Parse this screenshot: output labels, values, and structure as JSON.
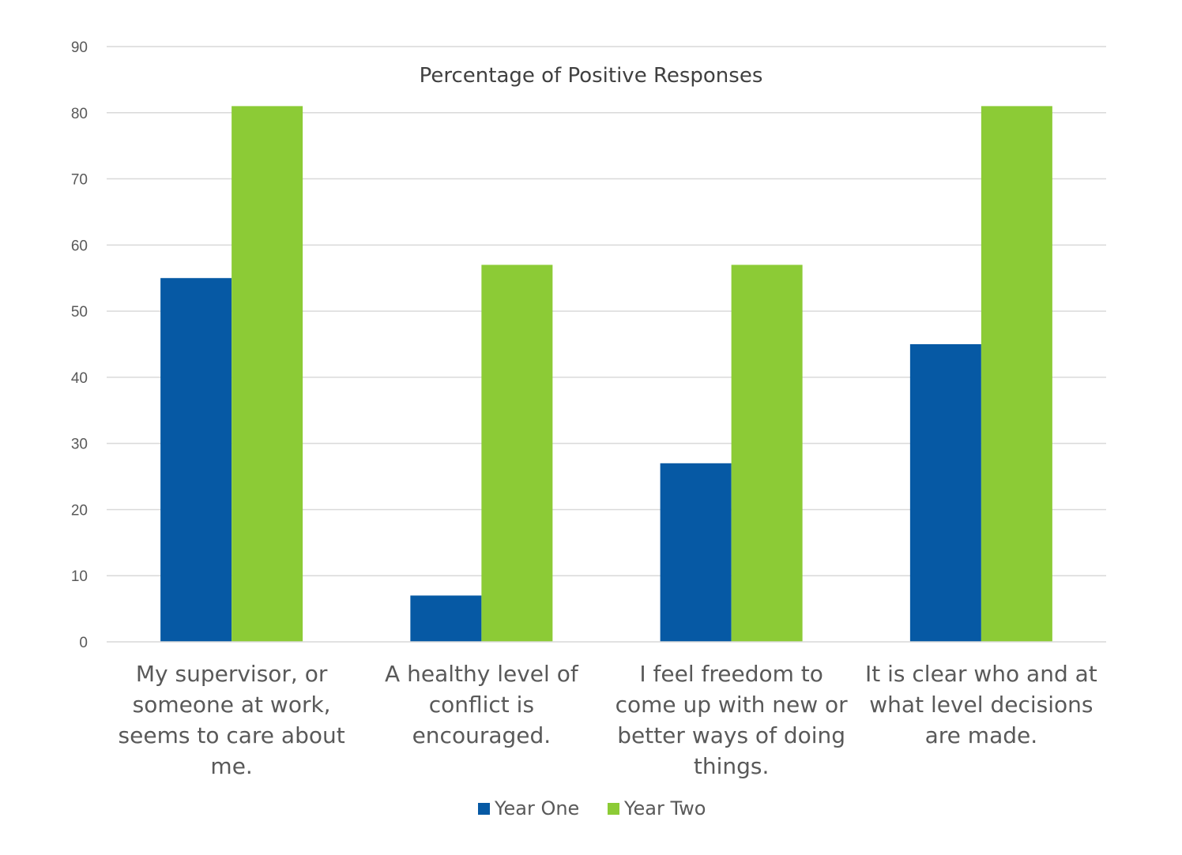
{
  "chart_data": {
    "type": "bar",
    "title": "Percentage of Positive Responses",
    "xlabel": "",
    "ylabel": "",
    "ylim": [
      0,
      90
    ],
    "yticks": [
      0,
      10,
      20,
      30,
      40,
      50,
      60,
      70,
      80,
      90
    ],
    "grid": true,
    "legend_position": "bottom",
    "categories": [
      "My supervisor, or someone at work, seems to care about me.",
      "A healthy level of conflict is encouraged.",
      "I feel freedom to come up with new or better ways of doing things.",
      "It is clear who and at what level decisions are made."
    ],
    "category_label_lines": [
      [
        "My supervisor, or",
        "someone at work,",
        "seems to care about",
        "me."
      ],
      [
        "A healthy level of",
        "conflict is",
        "encouraged."
      ],
      [
        "I feel freedom to",
        "come up with new or",
        "better ways of doing",
        "things."
      ],
      [
        "It is clear who and at",
        "what level decisions",
        "are made."
      ]
    ],
    "series": [
      {
        "name": "Year One",
        "color": "#0659A4",
        "values": [
          55,
          7,
          27,
          45
        ]
      },
      {
        "name": "Year Two",
        "color": "#8CCB36",
        "values": [
          81,
          57,
          57,
          81
        ]
      }
    ]
  }
}
